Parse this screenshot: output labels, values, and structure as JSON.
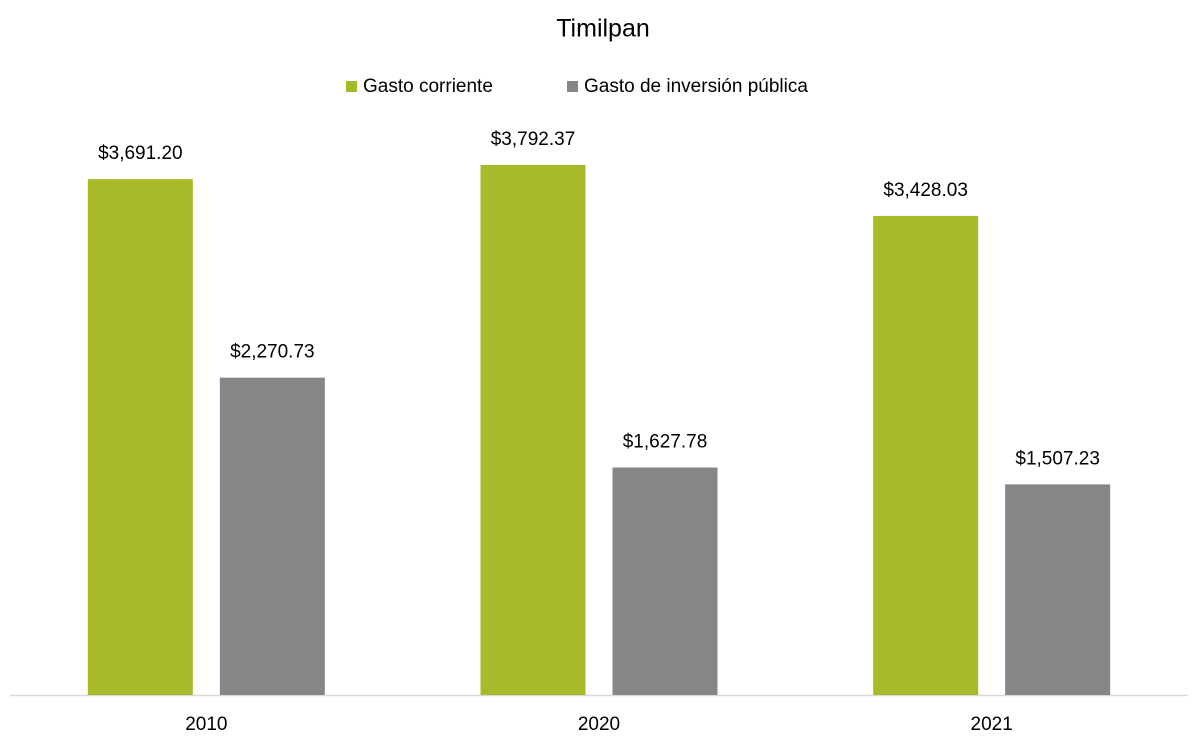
{
  "chart_data": {
    "type": "bar",
    "title": "Timilpan",
    "categories": [
      "2010",
      "2020",
      "2021"
    ],
    "series": [
      {
        "name": "Gasto corriente",
        "color": "#a8b92a",
        "values": [
          3691.2,
          3792.37,
          3428.03
        ],
        "value_labels": [
          "$3,691.20",
          "$3,792.37",
          "$3,428.03"
        ]
      },
      {
        "name": "Gasto de inversión pública",
        "color": "#868686",
        "values": [
          2270.73,
          1627.78,
          1507.23
        ],
        "value_labels": [
          "$2,270.73",
          "$1,627.78",
          "$1,507.23"
        ]
      }
    ],
    "legend": "top"
  }
}
